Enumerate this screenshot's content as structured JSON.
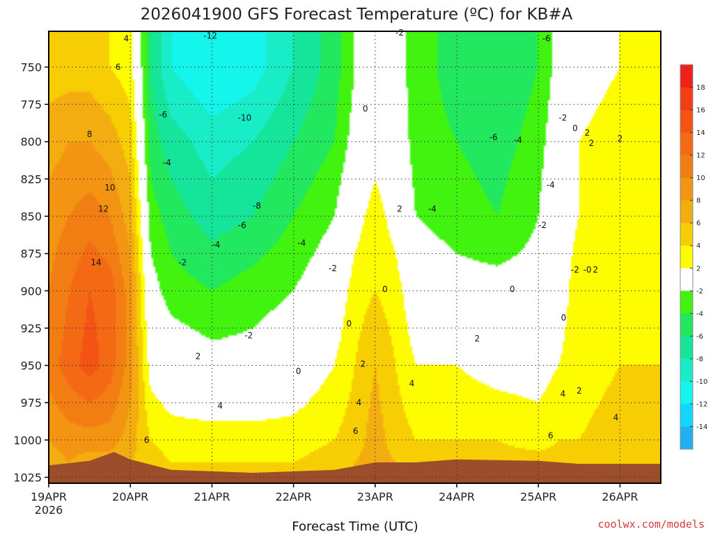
{
  "chart_data": {
    "type": "heatmap",
    "title": "2026041900 GFS Forecast Temperature (ºC) for KB#A",
    "xlabel": "Forecast Time (UTC)",
    "ylabel": "",
    "credit": "coolwx.com/models",
    "x_tick_labels": [
      "19APR",
      "20APR",
      "21APR",
      "22APR",
      "23APR",
      "24APR",
      "25APR",
      "26APR"
    ],
    "x_tick_sublabel": "2026",
    "x_range_days": [
      0,
      7.5
    ],
    "y_tick_labels": [
      "750",
      "775",
      "800",
      "825",
      "850",
      "875",
      "900",
      "925",
      "950",
      "975",
      "1000",
      "1025"
    ],
    "y_range_hpa": [
      726,
      1029
    ],
    "colorbar": {
      "labels": [
        "18",
        "16",
        "14",
        "12",
        "10",
        "8",
        "6",
        "4",
        "2",
        "-2",
        "-4",
        "-6",
        "-8",
        "-10",
        "-12",
        "-14"
      ],
      "bins": [
        {
          "lo": 18,
          "hi": 20,
          "color": "#f0201a"
        },
        {
          "lo": 16,
          "hi": 18,
          "color": "#f33d12"
        },
        {
          "lo": 14,
          "hi": 16,
          "color": "#f35414"
        },
        {
          "lo": 12,
          "hi": 14,
          "color": "#f46a14"
        },
        {
          "lo": 10,
          "hi": 12,
          "color": "#f27e13"
        },
        {
          "lo": 8,
          "hi": 10,
          "color": "#f39512"
        },
        {
          "lo": 6,
          "hi": 8,
          "color": "#f4ad10"
        },
        {
          "lo": 4,
          "hi": 6,
          "color": "#f7cd03"
        },
        {
          "lo": 2,
          "hi": 4,
          "color": "#fdfc00"
        },
        {
          "lo": -2,
          "hi": 2,
          "color": "#ffffff"
        },
        {
          "lo": -4,
          "hi": -2,
          "color": "#42f30f"
        },
        {
          "lo": -6,
          "hi": -4,
          "color": "#22e860"
        },
        {
          "lo": -8,
          "hi": -6,
          "color": "#14e59a"
        },
        {
          "lo": -10,
          "hi": -8,
          "color": "#18edc8"
        },
        {
          "lo": -12,
          "hi": -10,
          "color": "#14f5ec"
        },
        {
          "lo": -14,
          "hi": -12,
          "color": "#12d8ff"
        },
        {
          "lo": -16,
          "hi": -14,
          "color": "#22b0f4"
        }
      ]
    },
    "terrain_color": "#9c4e2b",
    "temperature_profiles": [
      {
        "t": 0.0,
        "p": [
          750,
          800,
          850,
          900,
          950,
          1000,
          1015
        ],
        "temp": [
          5,
          7,
          9,
          10,
          11,
          8,
          7
        ]
      },
      {
        "t": 0.25,
        "p": [
          750,
          800,
          850,
          900,
          950,
          1000,
          1015
        ],
        "temp": [
          5,
          8,
          10,
          12,
          13,
          9,
          8
        ]
      },
      {
        "t": 0.5,
        "p": [
          750,
          800,
          850,
          900,
          950,
          1000,
          1015
        ],
        "temp": [
          5,
          8,
          11,
          14,
          15,
          9,
          7
        ]
      },
      {
        "t": 0.75,
        "p": [
          750,
          800,
          850,
          900,
          950,
          1000,
          1015
        ],
        "temp": [
          4,
          7,
          10,
          13,
          13,
          9,
          7
        ]
      },
      {
        "t": 1.0,
        "p": [
          750,
          800,
          850,
          900,
          950,
          1000,
          1015
        ],
        "temp": [
          3,
          5,
          7,
          9,
          9,
          7,
          6
        ]
      },
      {
        "t": 1.25,
        "p": [
          750,
          800,
          850,
          900,
          950,
          1000,
          1015
        ],
        "temp": [
          -6,
          -5,
          -3,
          -1,
          1,
          4,
          5
        ]
      },
      {
        "t": 1.5,
        "p": [
          750,
          800,
          850,
          900,
          950,
          1000,
          1015
        ],
        "temp": [
          -10,
          -7,
          -5,
          -3,
          0,
          3,
          4
        ]
      },
      {
        "t": 2.0,
        "p": [
          750,
          800,
          850,
          900,
          950,
          1000,
          1015
        ],
        "temp": [
          -12,
          -9,
          -7,
          -4,
          -1,
          3,
          4
        ]
      },
      {
        "t": 2.5,
        "p": [
          750,
          800,
          850,
          900,
          950,
          1000,
          1015
        ],
        "temp": [
          -11,
          -8,
          -6,
          -3,
          -1,
          3,
          4
        ]
      },
      {
        "t": 3.0,
        "p": [
          750,
          800,
          850,
          900,
          950,
          1000,
          1015
        ],
        "temp": [
          -8,
          -6,
          -4,
          -2,
          0,
          3,
          4
        ]
      },
      {
        "t": 3.5,
        "p": [
          750,
          800,
          850,
          900,
          950,
          1000,
          1015
        ],
        "temp": [
          -5,
          -4,
          -2,
          0,
          2,
          4,
          5
        ]
      },
      {
        "t": 3.75,
        "p": [
          750,
          800,
          850,
          900,
          950,
          1000,
          1015
        ],
        "temp": [
          -2,
          -1,
          1,
          3,
          4,
          5,
          6
        ]
      },
      {
        "t": 4.0,
        "p": [
          750,
          800,
          850,
          900,
          950,
          1000,
          1015
        ],
        "temp": [
          -1,
          1,
          3,
          4,
          6,
          7,
          7
        ]
      },
      {
        "t": 4.25,
        "p": [
          750,
          800,
          850,
          900,
          950,
          1000,
          1015
        ],
        "temp": [
          -1,
          0,
          1,
          3,
          4,
          5,
          6
        ]
      },
      {
        "t": 4.5,
        "p": [
          750,
          800,
          850,
          900,
          950,
          1000,
          1015
        ],
        "temp": [
          -3,
          -3,
          -2,
          0,
          2,
          4,
          5
        ]
      },
      {
        "t": 5.0,
        "p": [
          750,
          800,
          850,
          900,
          950,
          1000,
          1015
        ],
        "temp": [
          -5,
          -4,
          -3,
          -1,
          2,
          4,
          6
        ]
      },
      {
        "t": 5.5,
        "p": [
          750,
          800,
          850,
          900,
          950,
          1000,
          1015
        ],
        "temp": [
          -6,
          -5,
          -4,
          -1,
          1,
          4,
          5
        ]
      },
      {
        "t": 6.0,
        "p": [
          750,
          800,
          850,
          900,
          950,
          1000,
          1015
        ],
        "temp": [
          -4,
          -3,
          -2,
          -1,
          1,
          3,
          5
        ]
      },
      {
        "t": 6.25,
        "p": [
          750,
          800,
          850,
          900,
          950,
          1000,
          1015
        ],
        "temp": [
          -1,
          0,
          1,
          1,
          2,
          4,
          5
        ]
      },
      {
        "t": 6.5,
        "p": [
          750,
          800,
          850,
          900,
          950,
          1000,
          1015
        ],
        "temp": [
          1,
          2,
          2,
          3,
          3,
          4,
          5
        ]
      },
      {
        "t": 7.0,
        "p": [
          750,
          800,
          850,
          900,
          950,
          1000,
          1015
        ],
        "temp": [
          2,
          3,
          3,
          3,
          4,
          5,
          5
        ]
      },
      {
        "t": 7.5,
        "p": [
          750,
          800,
          850,
          900,
          950,
          1000,
          1015
        ],
        "temp": [
          3,
          3,
          3,
          3,
          4,
          5,
          5
        ]
      }
    ],
    "surface_pressure": [
      {
        "t": 0.0,
        "p": 1017
      },
      {
        "t": 0.5,
        "p": 1014
      },
      {
        "t": 0.8,
        "p": 1008
      },
      {
        "t": 1.0,
        "p": 1013
      },
      {
        "t": 1.5,
        "p": 1020
      },
      {
        "t": 2.5,
        "p": 1022
      },
      {
        "t": 3.5,
        "p": 1020
      },
      {
        "t": 4.0,
        "p": 1015
      },
      {
        "t": 4.5,
        "p": 1015
      },
      {
        "t": 5.0,
        "p": 1013
      },
      {
        "t": 6.0,
        "p": 1014
      },
      {
        "t": 6.5,
        "p": 1016
      },
      {
        "t": 7.5,
        "p": 1016
      }
    ],
    "contour_labels": [
      {
        "t": 0.95,
        "p": 731,
        "text": "4"
      },
      {
        "t": 0.85,
        "p": 750,
        "text": "6"
      },
      {
        "t": 0.5,
        "p": 795,
        "text": "8"
      },
      {
        "t": 0.75,
        "p": 831,
        "text": "10"
      },
      {
        "t": 0.67,
        "p": 845,
        "text": "12"
      },
      {
        "t": 0.58,
        "p": 881,
        "text": "14"
      },
      {
        "t": 1.98,
        "p": 729,
        "text": "-12"
      },
      {
        "t": 1.4,
        "p": 782,
        "text": "-6"
      },
      {
        "t": 2.4,
        "p": 784,
        "text": "-10"
      },
      {
        "t": 1.45,
        "p": 814,
        "text": "-4"
      },
      {
        "t": 2.55,
        "p": 843,
        "text": "-8"
      },
      {
        "t": 2.37,
        "p": 856,
        "text": "-6"
      },
      {
        "t": 2.05,
        "p": 869,
        "text": "-4"
      },
      {
        "t": 3.1,
        "p": 868,
        "text": "-4"
      },
      {
        "t": 1.64,
        "p": 881,
        "text": "-2"
      },
      {
        "t": 2.45,
        "p": 930,
        "text": "-2"
      },
      {
        "t": 4.3,
        "p": 727,
        "text": "-2"
      },
      {
        "t": 3.48,
        "p": 885,
        "text": "-2"
      },
      {
        "t": 4.7,
        "p": 845,
        "text": "-4"
      },
      {
        "t": 5.45,
        "p": 797,
        "text": "-6"
      },
      {
        "t": 6.1,
        "p": 731,
        "text": "-6"
      },
      {
        "t": 5.75,
        "p": 799,
        "text": "-4"
      },
      {
        "t": 6.3,
        "p": 784,
        "text": "-2"
      },
      {
        "t": 6.45,
        "p": 791,
        "text": "0"
      },
      {
        "t": 6.6,
        "p": 794,
        "text": "2"
      },
      {
        "t": 6.65,
        "p": 801,
        "text": "2"
      },
      {
        "t": 6.15,
        "p": 829,
        "text": "-4"
      },
      {
        "t": 6.05,
        "p": 856,
        "text": "-2"
      },
      {
        "t": 6.45,
        "p": 886,
        "text": "-2"
      },
      {
        "t": 6.6,
        "p": 886,
        "text": "-0"
      },
      {
        "t": 6.7,
        "p": 886,
        "text": "2"
      },
      {
        "t": 3.88,
        "p": 778,
        "text": "0"
      },
      {
        "t": 4.3,
        "p": 845,
        "text": "2"
      },
      {
        "t": 4.12,
        "p": 899,
        "text": "0"
      },
      {
        "t": 3.68,
        "p": 922,
        "text": "0"
      },
      {
        "t": 3.06,
        "p": 954,
        "text": "0"
      },
      {
        "t": 3.85,
        "p": 949,
        "text": "2"
      },
      {
        "t": 1.83,
        "p": 944,
        "text": "2"
      },
      {
        "t": 2.1,
        "p": 977,
        "text": "4"
      },
      {
        "t": 1.2,
        "p": 1000,
        "text": "6"
      },
      {
        "t": 3.8,
        "p": 975,
        "text": "4"
      },
      {
        "t": 3.76,
        "p": 994,
        "text": "6"
      },
      {
        "t": 4.45,
        "p": 962,
        "text": "4"
      },
      {
        "t": 5.25,
        "p": 932,
        "text": "2"
      },
      {
        "t": 6.3,
        "p": 969,
        "text": "4"
      },
      {
        "t": 6.15,
        "p": 997,
        "text": "6"
      },
      {
        "t": 6.5,
        "p": 967,
        "text": "2"
      },
      {
        "t": 6.95,
        "p": 985,
        "text": "4"
      },
      {
        "t": 6.31,
        "p": 918,
        "text": "0"
      },
      {
        "t": 5.68,
        "p": 899,
        "text": "0"
      },
      {
        "t": 7.0,
        "p": 798,
        "text": "2"
      }
    ]
  }
}
